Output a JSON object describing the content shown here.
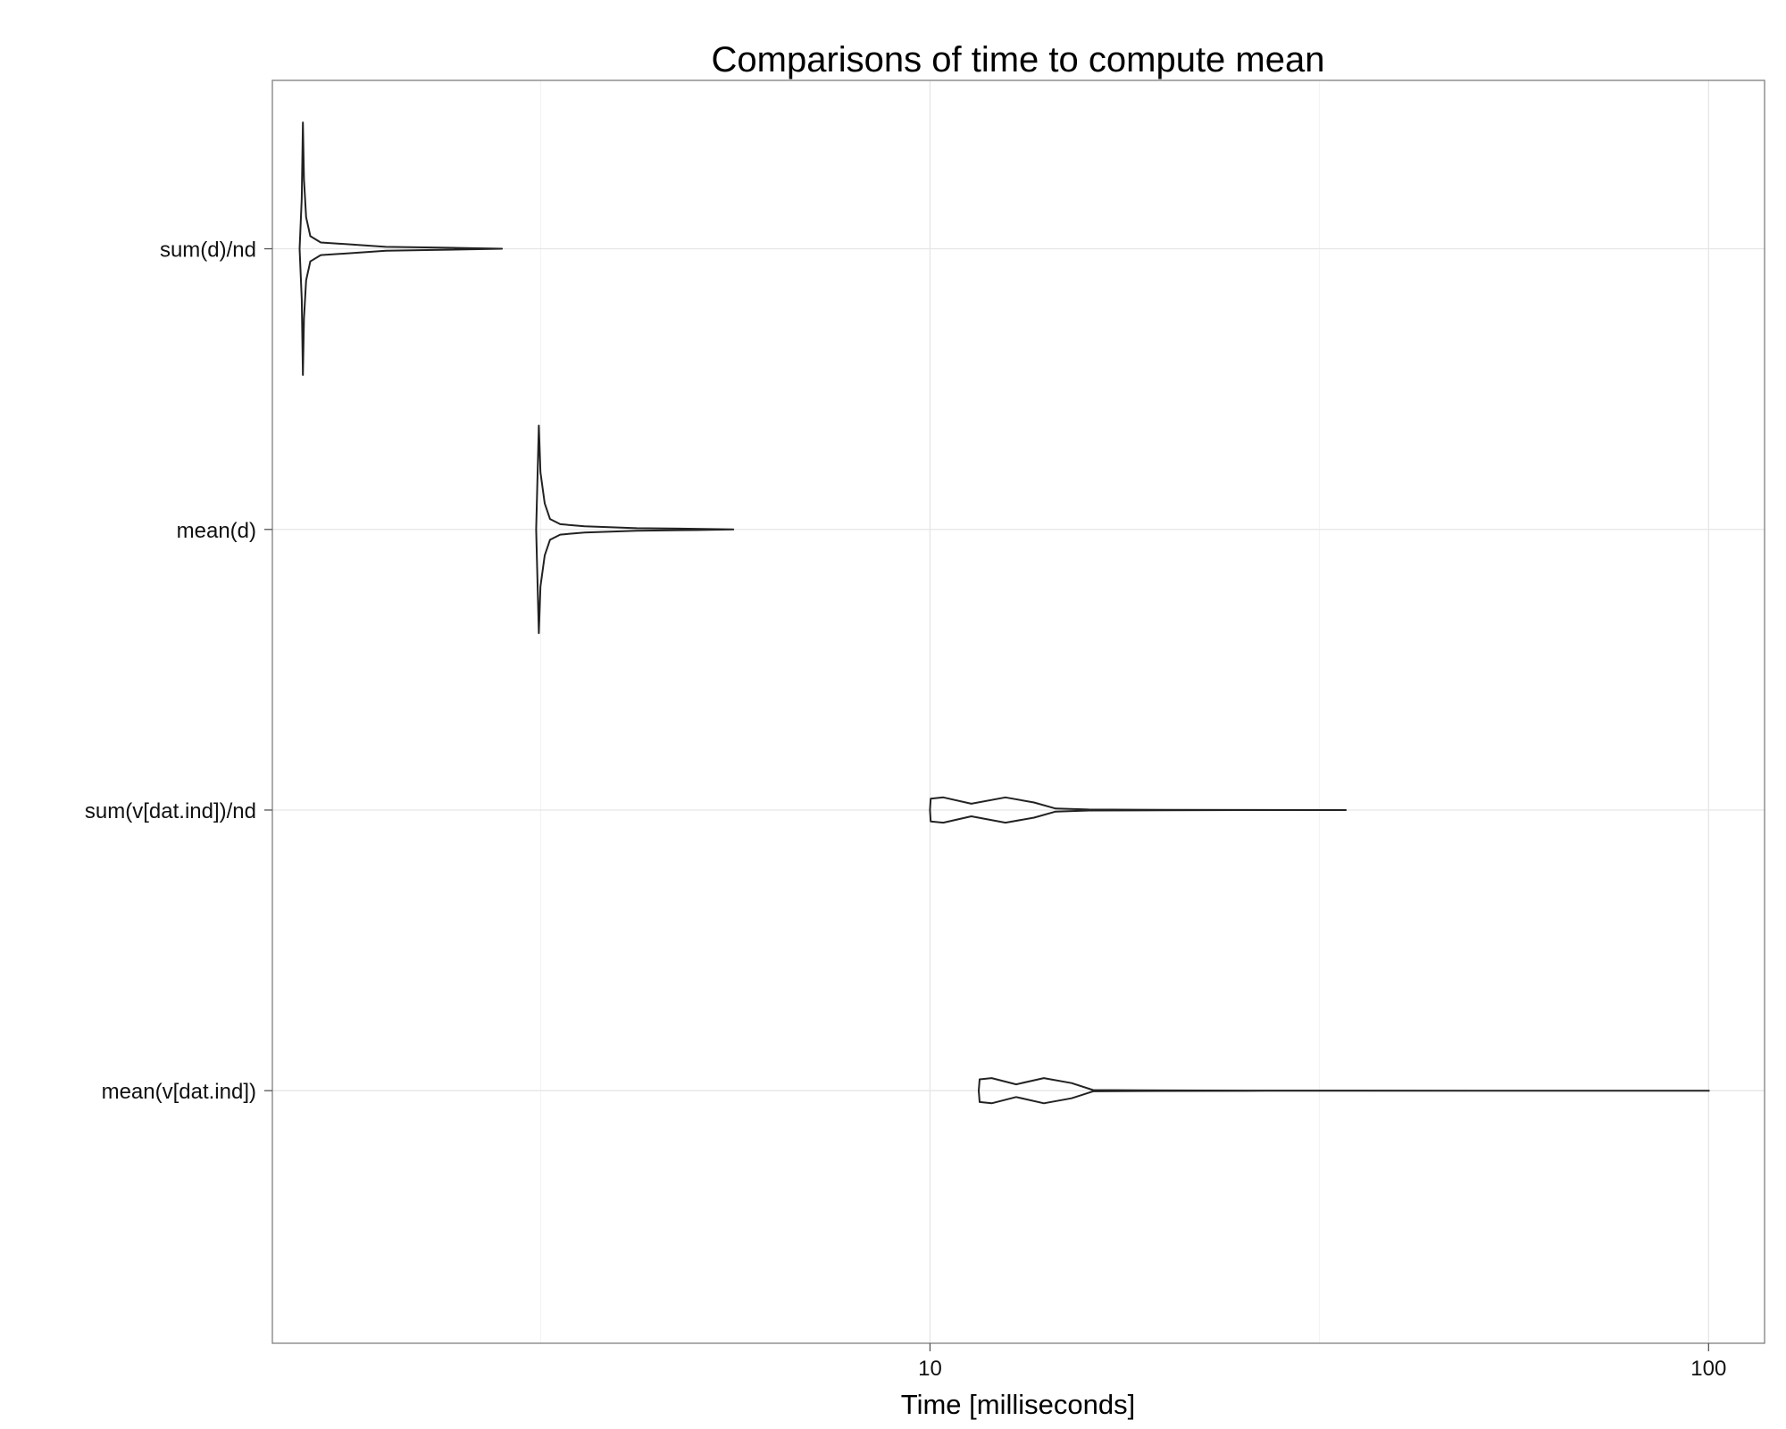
{
  "chart_data": {
    "type": "violin",
    "title": "Comparisons of time to compute mean",
    "xlabel": "Time [milliseconds]",
    "ylabel": "",
    "x_scale": "log10",
    "xlim": [
      1.43,
      118
    ],
    "x_ticks": [
      10,
      100
    ],
    "x_tick_labels": [
      "10",
      "100"
    ],
    "grid": true,
    "categories": [
      "sum(d)/nd",
      "mean(d)",
      "sum(v[dat.ind])/nd",
      "mean(v[dat.ind])"
    ],
    "series": [
      {
        "name": "sum(d)/nd",
        "min_ms": 1.55,
        "max_ms": 2.82,
        "profile": [
          [
            1.55,
            0.0
          ],
          [
            1.56,
            0.4
          ],
          [
            1.565,
            1.0
          ],
          [
            1.57,
            0.55
          ],
          [
            1.58,
            0.25
          ],
          [
            1.6,
            0.1
          ],
          [
            1.65,
            0.05
          ],
          [
            1.8,
            0.035
          ],
          [
            2.0,
            0.015
          ],
          [
            2.3,
            0.01
          ],
          [
            2.82,
            0.0
          ]
        ]
      },
      {
        "name": "mean(d)",
        "min_ms": 3.12,
        "max_ms": 5.59,
        "profile": [
          [
            3.12,
            0.0
          ],
          [
            3.13,
            0.4
          ],
          [
            3.145,
            1.0
          ],
          [
            3.16,
            0.55
          ],
          [
            3.2,
            0.25
          ],
          [
            3.25,
            0.1
          ],
          [
            3.35,
            0.05
          ],
          [
            3.6,
            0.03
          ],
          [
            4.2,
            0.012
          ],
          [
            5.0,
            0.006
          ],
          [
            5.59,
            0.0
          ]
        ]
      },
      {
        "name": "sum(v[dat.ind])/nd",
        "min_ms": 10.0,
        "max_ms": 34.2,
        "profile": [
          [
            10.0,
            0.0
          ],
          [
            10.02,
            0.9
          ],
          [
            10.4,
            1.0
          ],
          [
            11.3,
            0.5
          ],
          [
            12.5,
            1.0
          ],
          [
            13.6,
            0.6
          ],
          [
            14.5,
            0.12
          ],
          [
            16,
            0.04
          ],
          [
            20,
            0.02
          ],
          [
            26,
            0.005
          ],
          [
            34.2,
            0.0
          ]
        ]
      },
      {
        "name": "mean(v[dat.ind])",
        "min_ms": 11.55,
        "max_ms": 100.1,
        "profile": [
          [
            11.55,
            0.0
          ],
          [
            11.58,
            0.9
          ],
          [
            12.0,
            1.0
          ],
          [
            12.9,
            0.5
          ],
          [
            14.0,
            1.0
          ],
          [
            15.2,
            0.6
          ],
          [
            16.2,
            0.05
          ],
          [
            20,
            0.02
          ],
          [
            27,
            0.01
          ],
          [
            50,
            0.003
          ],
          [
            100.1,
            0.0
          ]
        ]
      }
    ],
    "max_half_width": [
      0.45,
      0.37,
      0.045,
      0.045
    ]
  }
}
